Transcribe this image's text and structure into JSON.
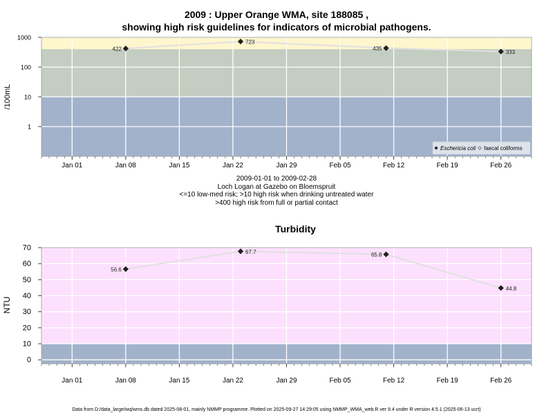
{
  "title_line1": "2009 : Upper Orange WMA, site 188085 ,",
  "title_line2": "showing high risk guidelines for indicators of microbial pathogens.",
  "notes": [
    "2009-01-01 to 2009-02-28",
    "Loch Logan at Gazebo on Bloemspruit",
    "<=10 low-med risk; >10 high risk when drinking untreated water",
    ">400 high risk from full or partial contact"
  ],
  "footer": "Data from D:/data_large/wq/wms.db dated 2025-08-01, mainly NMMP programme. Plotted on 2025-09-27 14:29:05 using NMMP_WMA_web.R ver 9.4 under R version 4.5.1 (2025-06-13 ucrt)",
  "colors": {
    "band_yellow": "#fef6cc",
    "band_green": "#c4cdc1",
    "band_blue": "#a2b2cb",
    "band_pink": "#fde0fd",
    "line": "#e0e0e0",
    "point": "#222222"
  },
  "chart_data": [
    {
      "type": "line",
      "title": "",
      "xlabel": "",
      "ylabel": "/100mL",
      "log_scale": true,
      "ylim": [
        0.1,
        1000
      ],
      "yticks": [
        1,
        10,
        100,
        1000
      ],
      "ytick_labels": [
        "1",
        "10",
        "100",
        "1000"
      ],
      "xlim": [
        "2008-12-28",
        "2009-03-02"
      ],
      "xticks": [
        "2009-01-01",
        "2009-01-08",
        "2009-01-15",
        "2009-01-22",
        "2009-01-29",
        "2009-02-05",
        "2009-02-12",
        "2009-02-19",
        "2009-02-26"
      ],
      "xtick_labels": [
        "Jan 01",
        "Jan 08",
        "Jan 15",
        "Jan 22",
        "Jan 29",
        "Feb 05",
        "Feb 12",
        "Feb 19",
        "Feb 26"
      ],
      "bands": [
        {
          "from": 400,
          "to": 1000,
          "color": "#fef6cc"
        },
        {
          "from": 10,
          "to": 400,
          "color": "#c4cdc1"
        },
        {
          "from": 0.1,
          "to": 10,
          "color": "#a2b2cb"
        }
      ],
      "series": [
        {
          "name": "Eschericia coli",
          "marker": "filled-diamond",
          "x": [
            "2009-01-08",
            "2009-01-23",
            "2009-02-11",
            "2009-02-26"
          ],
          "y": [
            422,
            723,
            435,
            333
          ],
          "labels": [
            "422",
            "723",
            "435",
            "333"
          ]
        }
      ],
      "legend": {
        "position": "bottom-right",
        "entries": [
          {
            "label": "Eschericia coli",
            "marker": "filled-diamond",
            "italic": true
          },
          {
            "label": "faecal coliforms",
            "marker": "open-diamond",
            "italic": false
          }
        ]
      },
      "grid": true
    },
    {
      "type": "line",
      "title": "Turbidity",
      "xlabel": "",
      "ylabel": "NTU",
      "log_scale": false,
      "ylim": [
        -2.5,
        70
      ],
      "yticks": [
        0,
        10,
        20,
        30,
        40,
        50,
        60,
        70
      ],
      "ytick_labels": [
        "0",
        "10",
        "20",
        "30",
        "40",
        "50",
        "60",
        "70"
      ],
      "xlim": [
        "2008-12-28",
        "2009-03-02"
      ],
      "xticks": [
        "2009-01-01",
        "2009-01-08",
        "2009-01-15",
        "2009-01-22",
        "2009-01-29",
        "2009-02-05",
        "2009-02-12",
        "2009-02-19",
        "2009-02-26"
      ],
      "xtick_labels": [
        "Jan 01",
        "Jan 08",
        "Jan 15",
        "Jan 22",
        "Jan 29",
        "Feb 05",
        "Feb 12",
        "Feb 19",
        "Feb 26"
      ],
      "bands": [
        {
          "from": 10,
          "to": 70,
          "color": "#fde0fd"
        },
        {
          "from": -2.5,
          "to": 10,
          "color": "#a2b2cb"
        }
      ],
      "series": [
        {
          "x": [
            "2009-01-08",
            "2009-01-23",
            "2009-02-11",
            "2009-02-26"
          ],
          "y": [
            56.6,
            67.7,
            65.8,
            44.8
          ],
          "labels": [
            "56.6",
            "67.7",
            "65.8",
            "44.8"
          ]
        }
      ],
      "grid": true
    }
  ]
}
